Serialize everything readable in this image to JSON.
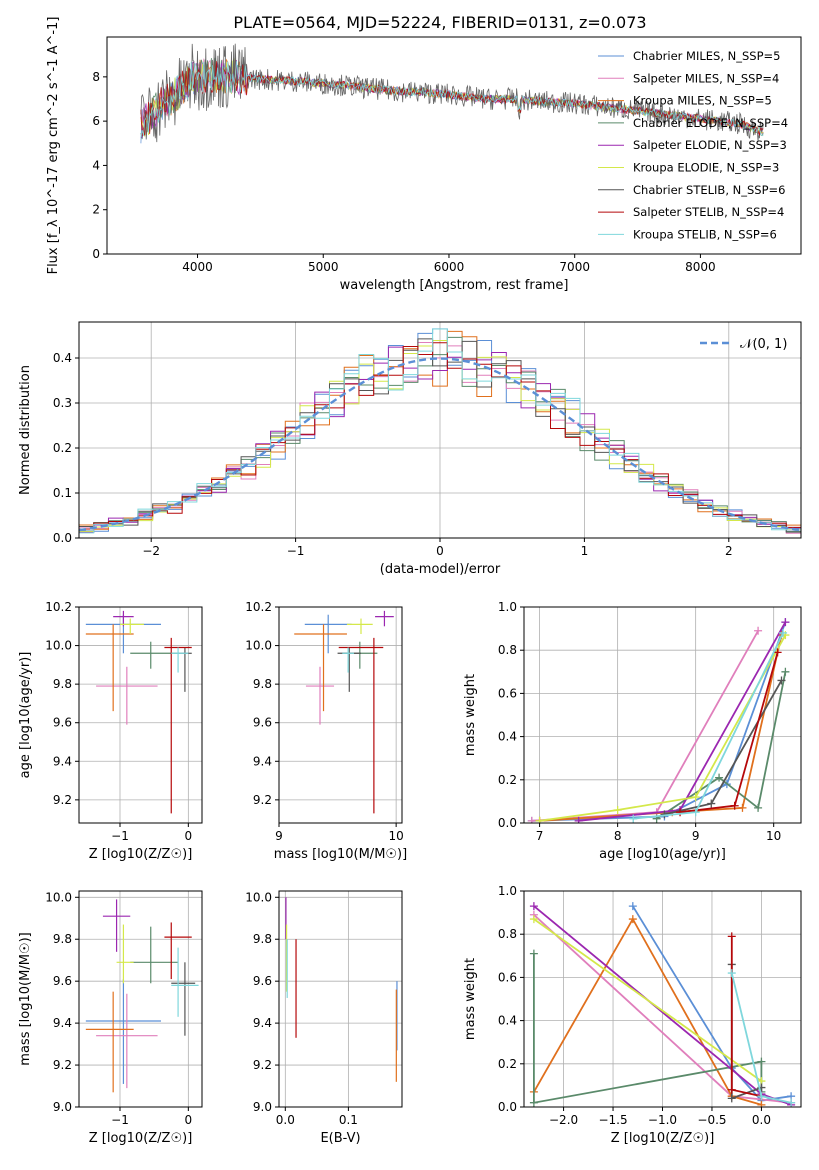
{
  "title": "PLATE=0564, MJD=52224, FIBERID=0131, z=0.073",
  "chart_data": [
    {
      "id": "spectrum",
      "type": "line",
      "xlabel": "wavelength [Angstrom, rest frame]",
      "ylabel": "Flux [f_λ 10^-17 erg cm^-2 s^-1 A^-1]",
      "xlim": [
        3280,
        8800
      ],
      "ylim": [
        0,
        9.8
      ],
      "xticks": [
        4000,
        5000,
        6000,
        7000,
        8000
      ],
      "yticks": [
        0,
        2,
        4,
        6,
        8
      ],
      "legend_position": "top-right",
      "series": [
        {
          "name": "Chabrier MILES, N_SSP=5",
          "color": "#5b8fd6"
        },
        {
          "name": "Salpeter MILES, N_SSP=4",
          "color": "#e07fbc"
        },
        {
          "name": "Kroupa MILES, N_SSP=5",
          "color": "#e0701d"
        },
        {
          "name": "Chabrier ELODIE, N_SSP=4",
          "color": "#5a8a6a"
        },
        {
          "name": "Salpeter ELODIE, N_SSP=3",
          "color": "#9b27b0"
        },
        {
          "name": "Kroupa ELODIE, N_SSP=3",
          "color": "#d4e84a"
        },
        {
          "name": "Chabrier STELIB, N_SSP=6",
          "color": "#555555"
        },
        {
          "name": "Salpeter STELIB, N_SSP=4",
          "color": "#b5080a"
        },
        {
          "name": "Kroupa STELIB, N_SSP=6",
          "color": "#7fd7dc"
        }
      ],
      "continuum": {
        "x": [
          3550,
          3700,
          3850,
          3950,
          4100,
          4300,
          4500,
          4800,
          5000,
          5200,
          5500,
          5800,
          6000,
          6300,
          6500,
          6700,
          7000,
          7300,
          7600,
          8000,
          8300,
          8500
        ],
        "y": [
          5.8,
          6.7,
          7.3,
          7.9,
          8.1,
          8.0,
          7.9,
          7.8,
          7.7,
          7.6,
          7.4,
          7.3,
          7.2,
          7.0,
          7.0,
          6.9,
          6.8,
          6.6,
          6.4,
          6.1,
          5.9,
          5.5
        ]
      }
    },
    {
      "id": "residuals",
      "type": "line",
      "xlabel": "(data-model)/error",
      "ylabel": "Normed distribution",
      "xlim": [
        -2.5,
        2.5
      ],
      "ylim": [
        0,
        0.48
      ],
      "xticks": [
        -2,
        -1,
        0,
        1,
        2
      ],
      "yticks": [
        0.0,
        0.1,
        0.2,
        0.3,
        0.4
      ],
      "grid": true,
      "legend_position": "top-right",
      "gaussian": {
        "name": "𝒩(0, 1)",
        "color": "#5b8fd6",
        "mean": 0,
        "sigma": 1
      },
      "hist_bins": 49,
      "hist_series_colors": [
        "#5b8fd6",
        "#e07fbc",
        "#e0701d",
        "#5a8a6a",
        "#9b27b0",
        "#d4e84a",
        "#555555",
        "#b5080a",
        "#7fd7dc"
      ]
    },
    {
      "id": "age-vs-z",
      "type": "scatter",
      "xlabel": "Z [log10(Z/Z☉)]",
      "ylabel": "age [log10(age/yr)]",
      "xlim": [
        -1.6,
        0.2
      ],
      "ylim": [
        9.08,
        10.2
      ],
      "xticks": [
        -1,
        0
      ],
      "yticks": [
        9.2,
        9.4,
        9.6,
        9.8,
        10.0,
        10.2
      ],
      "grid": true,
      "errorbars": [
        {
          "color": "#5b8fd6",
          "x": -0.95,
          "y": 10.11,
          "xerr": [
            0.55,
            0.55
          ],
          "yerr": [
            0.15,
            0.05
          ]
        },
        {
          "color": "#e07fbc",
          "x": -0.9,
          "y": 9.79,
          "xerr": [
            0.45,
            0.45
          ],
          "yerr": [
            0.2,
            0.1
          ]
        },
        {
          "color": "#e0701d",
          "x": -1.1,
          "y": 10.06,
          "xerr": [
            0.4,
            0.3
          ],
          "yerr": [
            0.4,
            0.05
          ]
        },
        {
          "color": "#5a8a6a",
          "x": -0.55,
          "y": 9.96,
          "xerr": [
            0.3,
            0.4
          ],
          "yerr": [
            0.08,
            0.06
          ]
        },
        {
          "color": "#9b27b0",
          "x": -0.95,
          "y": 10.15,
          "xerr": [
            0.15,
            0.15
          ],
          "yerr": [
            0.05,
            0.03
          ]
        },
        {
          "color": "#d4e84a",
          "x": -0.85,
          "y": 10.11,
          "xerr": [
            0.15,
            0.2
          ],
          "yerr": [
            0.05,
            0.03
          ]
        },
        {
          "color": "#555555",
          "x": -0.05,
          "y": 9.96,
          "xerr": [
            0.1,
            0.1
          ],
          "yerr": [
            0.2,
            0.03
          ]
        },
        {
          "color": "#b5080a",
          "x": -0.25,
          "y": 9.99,
          "xerr": [
            0.1,
            0.3
          ],
          "yerr": [
            0.86,
            0.05
          ]
        },
        {
          "color": "#7fd7dc",
          "x": -0.15,
          "y": 9.96,
          "xerr": [
            0.1,
            0.15
          ],
          "yerr": [
            0.1,
            0.03
          ]
        }
      ]
    },
    {
      "id": "age-vs-mass",
      "type": "scatter",
      "xlabel": "mass [log10(M/M☉)]",
      "ylabel": "",
      "xlim": [
        9.0,
        10.05
      ],
      "ylim": [
        9.08,
        10.2
      ],
      "xticks": [
        9,
        10
      ],
      "yticks": [
        9.2,
        9.4,
        9.6,
        9.8,
        10.0,
        10.2
      ],
      "grid": true,
      "errorbars": [
        {
          "color": "#5b8fd6",
          "x": 9.42,
          "y": 10.11,
          "xerr": [
            0.2,
            0.2
          ],
          "yerr": [
            0.15,
            0.05
          ]
        },
        {
          "color": "#e07fbc",
          "x": 9.35,
          "y": 9.79,
          "xerr": [
            0.12,
            0.12
          ],
          "yerr": [
            0.2,
            0.1
          ]
        },
        {
          "color": "#e0701d",
          "x": 9.38,
          "y": 10.06,
          "xerr": [
            0.25,
            0.2
          ],
          "yerr": [
            0.4,
            0.05
          ]
        },
        {
          "color": "#5a8a6a",
          "x": 9.69,
          "y": 9.96,
          "xerr": [
            0.15,
            0.15
          ],
          "yerr": [
            0.08,
            0.06
          ]
        },
        {
          "color": "#9b27b0",
          "x": 9.9,
          "y": 10.15,
          "xerr": [
            0.08,
            0.08
          ],
          "yerr": [
            0.05,
            0.03
          ]
        },
        {
          "color": "#d4e84a",
          "x": 9.7,
          "y": 10.11,
          "xerr": [
            0.12,
            0.1
          ],
          "yerr": [
            0.05,
            0.03
          ]
        },
        {
          "color": "#555555",
          "x": 9.6,
          "y": 9.96,
          "xerr": [
            0.1,
            0.1
          ],
          "yerr": [
            0.2,
            0.03
          ]
        },
        {
          "color": "#b5080a",
          "x": 9.81,
          "y": 9.99,
          "xerr": [
            0.3,
            0.08
          ],
          "yerr": [
            0.86,
            0.05
          ]
        },
        {
          "color": "#7fd7dc",
          "x": 9.59,
          "y": 9.96,
          "xerr": [
            0.05,
            0.05
          ],
          "yerr": [
            0.1,
            0.03
          ]
        }
      ]
    },
    {
      "id": "weight-vs-age",
      "type": "line",
      "xlabel": "age [log10(age/yr)]",
      "ylabel": "mass weight",
      "xlim": [
        6.8,
        10.35
      ],
      "ylim": [
        0,
        1.0
      ],
      "xticks": [
        7,
        8,
        9,
        10
      ],
      "yticks": [
        0.0,
        0.2,
        0.4,
        0.6,
        0.8,
        1.0
      ],
      "grid": true,
      "series": [
        {
          "color": "#5b8fd6",
          "x": [
            6.9,
            8.6,
            9.4,
            10.15
          ],
          "y": [
            0.01,
            0.03,
            0.18,
            0.93
          ]
        },
        {
          "color": "#e07fbc",
          "x": [
            6.9,
            8.5,
            9.8
          ],
          "y": [
            0.01,
            0.05,
            0.89
          ]
        },
        {
          "color": "#e0701d",
          "x": [
            7.0,
            8.7,
            9.6,
            10.1
          ],
          "y": [
            0.01,
            0.05,
            0.07,
            0.87
          ]
        },
        {
          "color": "#5a8a6a",
          "x": [
            8.5,
            9.3,
            9.8,
            10.15
          ],
          "y": [
            0.02,
            0.21,
            0.07,
            0.7
          ]
        },
        {
          "color": "#9b27b0",
          "x": [
            7.5,
            8.8,
            10.15
          ],
          "y": [
            0.01,
            0.06,
            0.93
          ]
        },
        {
          "color": "#d4e84a",
          "x": [
            7.0,
            8.0,
            9.0,
            10.15
          ],
          "y": [
            0.01,
            0.06,
            0.12,
            0.87
          ]
        },
        {
          "color": "#555555",
          "x": [
            8.6,
            9.2,
            10.1
          ],
          "y": [
            0.04,
            0.09,
            0.66
          ]
        },
        {
          "color": "#b5080a",
          "x": [
            8.8,
            9.5,
            10.05
          ],
          "y": [
            0.05,
            0.08,
            0.79
          ]
        },
        {
          "color": "#7fd7dc",
          "x": [
            8.2,
            9.0,
            10.12
          ],
          "y": [
            0.02,
            0.05,
            0.88
          ]
        }
      ]
    },
    {
      "id": "mass-vs-z",
      "type": "scatter",
      "xlabel": "Z [log10(Z/Z☉)]",
      "ylabel": "mass [log10(M/M☉)]",
      "xlim": [
        -1.6,
        0.2
      ],
      "ylim": [
        9.0,
        10.03
      ],
      "xticks": [
        -1,
        0
      ],
      "yticks": [
        9.0,
        9.2,
        9.4,
        9.6,
        9.8,
        10.0
      ],
      "grid": true,
      "errorbars": [
        {
          "color": "#5b8fd6",
          "x": -0.95,
          "y": 9.41,
          "xerr": [
            0.55,
            0.55
          ],
          "yerr": [
            0.3,
            0.2
          ]
        },
        {
          "color": "#e07fbc",
          "x": -0.9,
          "y": 9.34,
          "xerr": [
            0.45,
            0.45
          ],
          "yerr": [
            0.25,
            0.2
          ]
        },
        {
          "color": "#e0701d",
          "x": -1.1,
          "y": 9.37,
          "xerr": [
            0.4,
            0.3
          ],
          "yerr": [
            0.3,
            0.18
          ]
        },
        {
          "color": "#5a8a6a",
          "x": -0.55,
          "y": 9.69,
          "xerr": [
            0.3,
            0.4
          ],
          "yerr": [
            0.1,
            0.17
          ]
        },
        {
          "color": "#9b27b0",
          "x": -1.05,
          "y": 9.91,
          "xerr": [
            0.2,
            0.2
          ],
          "yerr": [
            0.17,
            0.08
          ]
        },
        {
          "color": "#d4e84a",
          "x": -0.95,
          "y": 9.69,
          "xerr": [
            0.1,
            0.15
          ],
          "yerr": [
            0.1,
            0.18
          ]
        },
        {
          "color": "#555555",
          "x": -0.05,
          "y": 9.59,
          "xerr": [
            0.2,
            0.15
          ],
          "yerr": [
            0.25,
            0.1
          ]
        },
        {
          "color": "#b5080a",
          "x": -0.25,
          "y": 9.81,
          "xerr": [
            0.1,
            0.3
          ],
          "yerr": [
            0.2,
            0.07
          ]
        },
        {
          "color": "#7fd7dc",
          "x": -0.15,
          "y": 9.58,
          "xerr": [
            0.1,
            0.3
          ],
          "yerr": [
            0.15,
            0.18
          ]
        }
      ]
    },
    {
      "id": "mass-vs-ebv",
      "type": "scatter",
      "xlabel": "E(B-V)",
      "ylabel": "",
      "xlim": [
        -0.01,
        0.185
      ],
      "ylim": [
        9.0,
        10.03
      ],
      "xticks": [
        0.0,
        0.1
      ],
      "yticks": [
        9.0,
        9.2,
        9.4,
        9.6,
        9.8,
        10.0
      ],
      "grid": true,
      "errorbars": [
        {
          "color": "#5b8fd6",
          "x": 0.177,
          "y": 9.47,
          "xerr": [
            0,
            0
          ],
          "yerr": [
            0.2,
            0.13
          ]
        },
        {
          "color": "#e0701d",
          "x": 0.176,
          "y": 9.36,
          "xerr": [
            0,
            0
          ],
          "yerr": [
            0.24,
            0.2
          ]
        },
        {
          "color": "#9b27b0",
          "x": 0.001,
          "y": 9.9,
          "xerr": [
            0,
            0
          ],
          "yerr": [
            0.1,
            0.1
          ]
        },
        {
          "color": "#d4e84a",
          "x": 0.002,
          "y": 9.75,
          "xerr": [
            0,
            0
          ],
          "yerr": [
            0.2,
            0.12
          ]
        },
        {
          "color": "#7fd7dc",
          "x": 0.003,
          "y": 9.6,
          "xerr": [
            0,
            0
          ],
          "yerr": [
            0.08,
            0.2
          ]
        },
        {
          "color": "#b5080a",
          "x": 0.017,
          "y": 9.55,
          "xerr": [
            0,
            0
          ],
          "yerr": [
            0.22,
            0.25
          ]
        }
      ]
    },
    {
      "id": "weight-vs-z",
      "type": "line",
      "xlabel": "Z [log10(Z/Z☉)]",
      "ylabel": "mass weight",
      "xlim": [
        -2.4,
        0.4
      ],
      "ylim": [
        0,
        1.0
      ],
      "xticks": [
        -2.0,
        -1.5,
        -1.0,
        -0.5,
        0.0
      ],
      "yticks": [
        0.0,
        0.2,
        0.4,
        0.6,
        0.8,
        1.0
      ],
      "grid": true,
      "series": [
        {
          "color": "#5b8fd6",
          "x": [
            -1.3,
            -0.3,
            0.0,
            0.3
          ],
          "y": [
            0.93,
            0.18,
            0.03,
            0.05
          ]
        },
        {
          "color": "#e07fbc",
          "x": [
            -2.3,
            -0.3,
            0.3
          ],
          "y": [
            0.89,
            0.05,
            0.02
          ]
        },
        {
          "color": "#e0701d",
          "x": [
            -2.3,
            -1.3,
            -0.3,
            0.0
          ],
          "y": [
            0.07,
            0.87,
            0.05,
            0.01
          ]
        },
        {
          "color": "#5a8a6a",
          "x": [
            -2.3,
            -2.3,
            0.0,
            0.0
          ],
          "y": [
            0.71,
            0.02,
            0.21,
            0.07
          ]
        },
        {
          "color": "#9b27b0",
          "x": [
            -2.3,
            0.0,
            0.3
          ],
          "y": [
            0.93,
            0.06,
            0.01
          ]
        },
        {
          "color": "#d4e84a",
          "x": [
            -2.3,
            0.0
          ],
          "y": [
            0.87,
            0.12
          ]
        },
        {
          "color": "#555555",
          "x": [
            -0.3,
            -0.3,
            0.0
          ],
          "y": [
            0.66,
            0.04,
            0.09
          ]
        },
        {
          "color": "#b5080a",
          "x": [
            -0.3,
            -0.3,
            0.0
          ],
          "y": [
            0.79,
            0.08,
            0.05
          ]
        },
        {
          "color": "#7fd7dc",
          "x": [
            -0.3,
            0.0,
            0.3
          ],
          "y": [
            0.62,
            0.05,
            0.02
          ]
        }
      ]
    }
  ]
}
